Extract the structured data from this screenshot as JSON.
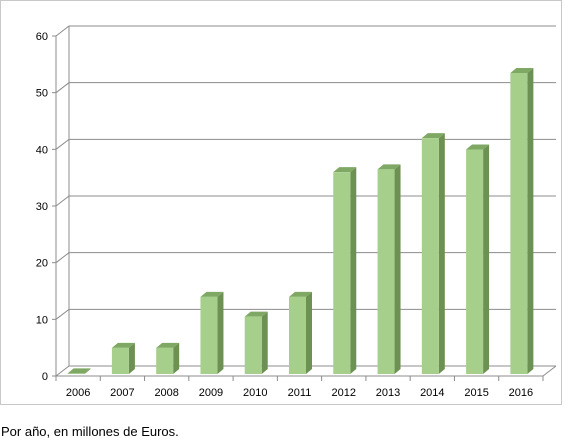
{
  "caption": "Por año, en millones de Euros.",
  "colors": {
    "bar_front": "#a6cf8c",
    "bar_side": "#6d9153",
    "bar_top": "#7fa864",
    "gridline": "#8c8c8c"
  },
  "chart_data": {
    "type": "bar",
    "categories": [
      "2006",
      "2007",
      "2008",
      "2009",
      "2010",
      "2011",
      "2012",
      "2013",
      "2014",
      "2015",
      "2016"
    ],
    "values": [
      1,
      5.5,
      5.5,
      14.5,
      11,
      14.5,
      36.5,
      37,
      42.5,
      40.5,
      54
    ],
    "ylim": [
      0,
      60
    ],
    "yticks": [
      0,
      10,
      20,
      30,
      40,
      50,
      60
    ],
    "grid": true,
    "legend": "none",
    "title": "",
    "xlabel": "",
    "ylabel": ""
  }
}
